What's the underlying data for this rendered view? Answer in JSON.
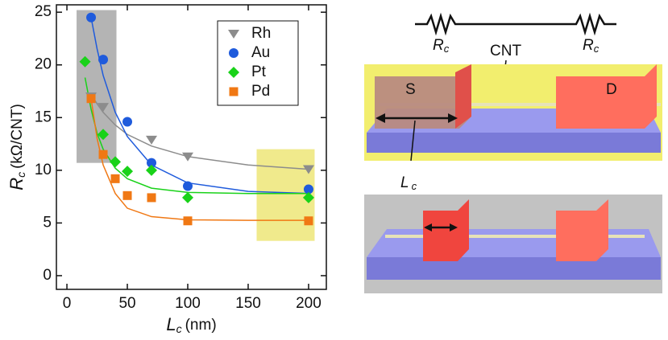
{
  "chart_data": {
    "type": "scatter",
    "x_label": {
      "symbol": "L",
      "subscript": "c",
      "unit": "(nm)"
    },
    "y_label": {
      "symbol": "R",
      "subscript": "c",
      "unit": "(kΩ/CNT)"
    },
    "xlim": [
      -8.7,
      214.7
    ],
    "ylim": [
      -1.3,
      25.7
    ],
    "xticks": [
      0,
      50,
      100,
      150,
      200
    ],
    "yticks": [
      0,
      5,
      10,
      15,
      20,
      25
    ],
    "legend": "upper right",
    "shaded_regions": [
      {
        "xlim": [
          8,
          41
        ],
        "ylim": [
          10.7,
          25.2
        ],
        "color": "#b4b4b4"
      },
      {
        "xlim": [
          157,
          205
        ],
        "ylim": [
          3.3,
          12.0
        ],
        "color": "#f0ea8c"
      }
    ],
    "series": [
      {
        "name": "Rh",
        "color": "#8c8c8c",
        "marker": "triangle-down",
        "x": [
          20,
          30,
          70,
          100,
          200
        ],
        "values": [
          17.0,
          16.0,
          12.9,
          11.3,
          10.1
        ],
        "fit": {
          "x": [
            20,
            25,
            30,
            40,
            50,
            70,
            100,
            150,
            200
          ],
          "values": [
            17.2,
            16.3,
            15.5,
            14.3,
            13.4,
            12.3,
            11.3,
            10.5,
            10.1
          ]
        }
      },
      {
        "name": "Au",
        "color": "#1f5bdc",
        "marker": "circle",
        "x": [
          20,
          30,
          50,
          70,
          100,
          200
        ],
        "values": [
          24.5,
          20.5,
          14.6,
          10.7,
          8.5,
          8.2
        ],
        "fit": {
          "x": [
            20,
            25,
            30,
            40,
            50,
            70,
            100,
            150,
            200
          ],
          "values": [
            24.5,
            21.5,
            19.0,
            15.5,
            13.2,
            10.5,
            8.8,
            8.0,
            7.8
          ]
        }
      },
      {
        "name": "Pt",
        "color": "#19d219",
        "marker": "diamond",
        "x": [
          15,
          30,
          40,
          50,
          70,
          100,
          200
        ],
        "values": [
          20.3,
          13.4,
          10.8,
          9.9,
          10.0,
          7.4,
          7.4
        ],
        "fit": {
          "x": [
            15,
            20,
            25,
            30,
            40,
            50,
            70,
            100,
            150,
            200
          ],
          "values": [
            18.8,
            15.8,
            13.5,
            12.0,
            10.2,
            9.2,
            8.3,
            7.9,
            7.8,
            7.8
          ]
        }
      },
      {
        "name": "Pd",
        "color": "#f07814",
        "marker": "square",
        "x": [
          20,
          30,
          40,
          50,
          70,
          100,
          200
        ],
        "values": [
          16.8,
          11.5,
          9.2,
          7.6,
          7.4,
          5.2,
          5.2
        ],
        "fit": {
          "x": [
            20,
            25,
            30,
            40,
            50,
            70,
            100,
            150,
            200
          ],
          "values": [
            16.8,
            13.0,
            10.5,
            7.8,
            6.4,
            5.6,
            5.3,
            5.25,
            5.25
          ]
        }
      }
    ]
  },
  "diagram": {
    "resistor_labels": [
      {
        "symbol": "R",
        "subscript": "c"
      },
      {
        "symbol": "R",
        "subscript": "c"
      }
    ],
    "cnt": "CNT",
    "source": "S",
    "drain": "D",
    "length_label": {
      "symbol": "L",
      "subscript": "c"
    }
  }
}
